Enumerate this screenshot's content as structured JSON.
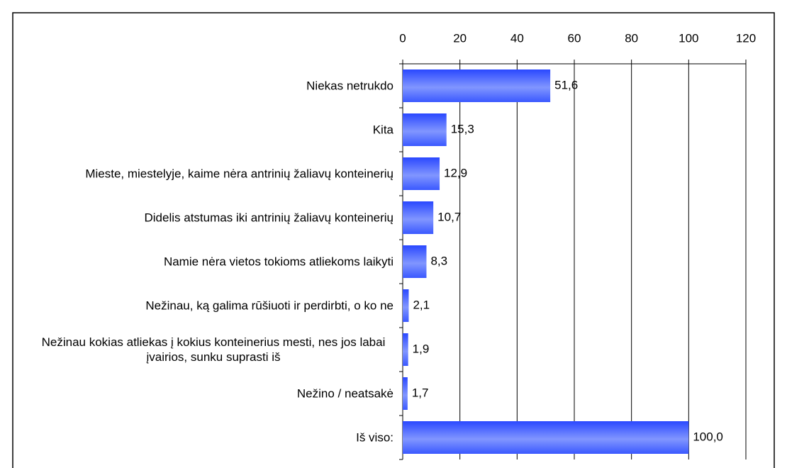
{
  "chart_data": {
    "type": "bar",
    "orientation": "horizontal",
    "categories": [
      "Niekas netrukdo",
      "Kita",
      "Mieste, miestelyje, kaime nėra antrinių žaliavų konteinerių",
      "Didelis atstumas iki antrinių žaliavų konteinerių",
      "Namie nėra vietos tokioms atliekoms laikyti",
      "Nežinau, ką galima rūšiuoti ir perdirbti, o ko ne",
      "Nežinau kokias atliekas į kokius konteinerius mesti, nes jos labai įvairios, sunku suprasti iš",
      "Nežino / neatsakė",
      "Iš viso:"
    ],
    "values": [
      51.6,
      15.3,
      12.9,
      10.7,
      8.3,
      2.1,
      1.9,
      1.7,
      100.0
    ],
    "value_labels": [
      "51,6",
      "15,3",
      "12,9",
      "10,7",
      "8,3",
      "2,1",
      "1,9",
      "1,7",
      "100,0"
    ],
    "color": "#3b5bff",
    "xlim": [
      0,
      120
    ],
    "xticks": [
      0,
      20,
      40,
      60,
      80,
      100,
      120
    ],
    "grid": true
  }
}
